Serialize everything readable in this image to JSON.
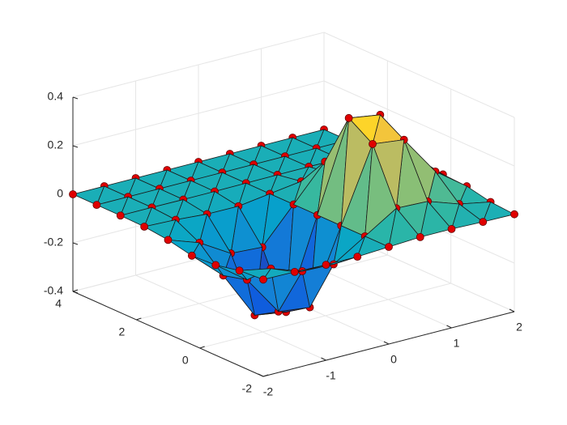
{
  "chart_data": {
    "type": "surface3d",
    "x": [
      -2,
      -1.5,
      -1,
      -0.5,
      0,
      0.5,
      1,
      1.5,
      2
    ],
    "y": [
      -2,
      -1.25,
      -0.5,
      0.25,
      1,
      1.75,
      2.5,
      3.25,
      4
    ],
    "z": [
      [
        -0.001,
        -0.003,
        -0.007,
        -0.007,
        0,
        0.007,
        0.007,
        0.003,
        0.001
      ],
      [
        -0.008,
        -0.033,
        -0.077,
        -0.082,
        0,
        0.082,
        0.077,
        0.033,
        0.008
      ],
      [
        -0.029,
        -0.123,
        -0.287,
        -0.303,
        0,
        0.303,
        0.287,
        0.123,
        0.029
      ],
      [
        -0.034,
        -0.149,
        -0.346,
        -0.366,
        0,
        0.366,
        0.346,
        0.149,
        0.034
      ],
      [
        -0.013,
        -0.058,
        -0.135,
        -0.143,
        0,
        0.143,
        0.135,
        0.058,
        0.013
      ],
      [
        -0.002,
        -0.007,
        -0.017,
        -0.018,
        0,
        0.018,
        0.017,
        0.007,
        0.002
      ],
      [
        0,
        0,
        -0.001,
        -0.001,
        0,
        0.001,
        0.001,
        0,
        0
      ],
      [
        0,
        0,
        0,
        0,
        0,
        0,
        0,
        0,
        0
      ],
      [
        0,
        0,
        0,
        0,
        0,
        0,
        0,
        0,
        0
      ]
    ],
    "xlim": [
      -2,
      2
    ],
    "ylim": [
      -2,
      4
    ],
    "zlim": [
      -0.4,
      0.4
    ],
    "xticks": [
      -2,
      -1,
      0,
      1,
      2
    ],
    "yticks": [
      -2,
      0,
      2,
      4
    ],
    "zticks": [
      -0.4,
      -0.2,
      0,
      0.2,
      0.4
    ],
    "grid": true,
    "colormap": "parula",
    "marker_color": "#e00000",
    "edge_color": "#1a1a1a"
  }
}
